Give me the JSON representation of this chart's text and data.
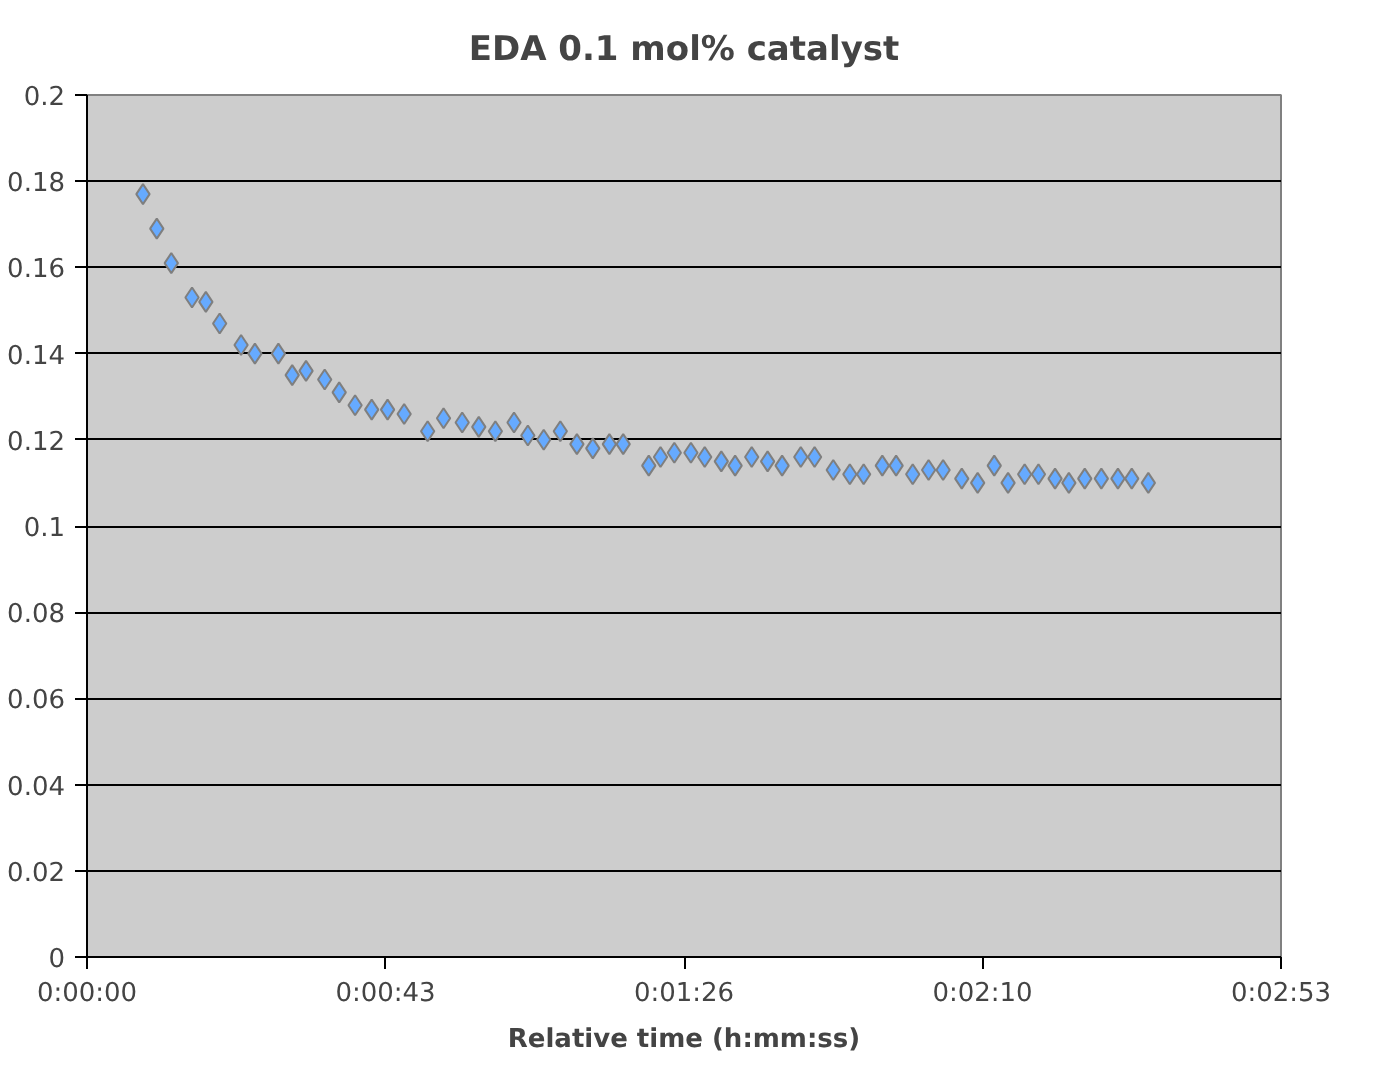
{
  "chart_data": {
    "type": "scatter",
    "title": "EDA 0.1 mol% catalyst",
    "xlabel": "Relative time (h:mm:ss)",
    "x": [
      8.1,
      10.1,
      12.2,
      15.2,
      17.2,
      19.2,
      22.3,
      24.3,
      27.7,
      29.7,
      31.7,
      34.4,
      36.5,
      38.8,
      41.2,
      43.5,
      45.9,
      49.3,
      51.6,
      54.3,
      56.7,
      59.1,
      61.8,
      63.8,
      66.1,
      68.5,
      70.9,
      73.2,
      75.6,
      77.6,
      81.3,
      83.0,
      85.0,
      87.4,
      89.4,
      91.8,
      93.8,
      96.2,
      98.5,
      100.6,
      103.3,
      105.3,
      108.0,
      110.4,
      112.4,
      115.1,
      117.1,
      119.5,
      121.8,
      123.9,
      126.6,
      128.9,
      131.3,
      133.3,
      135.7,
      137.7,
      140.1,
      142.1,
      144.4,
      146.8,
      149.2,
      151.2,
      153.6
    ],
    "series": [
      {
        "color": "#66aaff",
        "values": [
          0.177,
          0.169,
          0.161,
          0.153,
          0.152,
          0.147,
          0.142,
          0.14,
          0.14,
          0.135,
          0.136,
          0.134,
          0.131,
          0.128,
          0.127,
          0.127,
          0.126,
          0.122,
          0.125,
          0.124,
          0.123,
          0.122,
          0.124,
          0.121,
          0.12,
          0.122,
          0.119,
          0.118,
          0.119,
          0.119,
          0.114,
          0.116,
          0.117,
          0.117,
          0.116,
          0.115,
          0.114,
          0.116,
          0.115,
          0.114,
          0.116,
          0.116,
          0.113,
          0.112,
          0.112,
          0.114,
          0.114,
          0.112,
          0.113,
          0.113,
          0.111,
          0.11,
          0.114,
          0.11,
          0.112,
          0.112,
          0.111,
          0.11,
          0.111,
          0.111,
          0.111,
          0.111,
          0.11
        ]
      }
    ],
    "xlim": [
      0,
      172.8
    ],
    "ylim": [
      0,
      0.2
    ],
    "xticks": [
      {
        "value": 0,
        "label": "0:00:00"
      },
      {
        "value": 43.2,
        "label": "0:00:43"
      },
      {
        "value": 86.4,
        "label": "0:01:26"
      },
      {
        "value": 129.6,
        "label": "0:02:10"
      },
      {
        "value": 172.8,
        "label": "0:02:53"
      }
    ],
    "yticks": [
      0,
      0.02,
      0.04,
      0.06,
      0.08,
      0.1,
      0.12,
      0.14,
      0.16,
      0.18,
      0.2
    ],
    "grid": "y",
    "marker": "diamond"
  }
}
